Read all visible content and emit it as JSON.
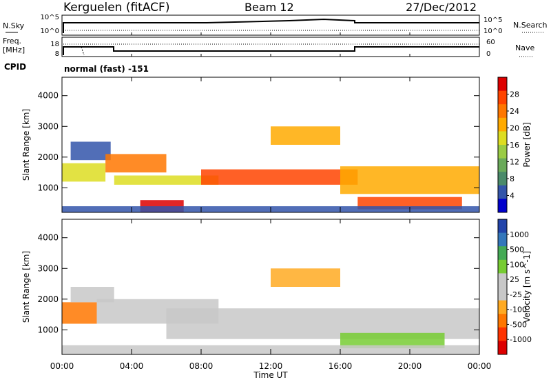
{
  "header": {
    "station": "Kerguelen (fitACF)",
    "beam": "Beam 12",
    "date": "27/Dec/2012"
  },
  "strip_labels": {
    "nsky": "N.Sky",
    "nsearch": "N.Search",
    "freq_line1": "Freq.",
    "freq_line2": "[MHz]",
    "nave": "Nave",
    "cpid": "CPID",
    "cpid_value": "normal (fast) -151"
  },
  "strip_ticks": {
    "noise_left": [
      "10^5",
      "10^0"
    ],
    "noise_right": [
      "10^5",
      "10^0"
    ],
    "freq_left": [
      "18",
      "8"
    ],
    "nave_right": [
      "60",
      "0"
    ]
  },
  "colors": {
    "power": [
      "#0000cc",
      "#3355aa",
      "#4a8a6a",
      "#6aaa5a",
      "#9acc44",
      "#dddd22",
      "#ffaa00",
      "#ff7700",
      "#ff4400",
      "#dd0000"
    ],
    "velocity": [
      "#2244aa",
      "#3377bb",
      "#44aa55",
      "#77cc33",
      "#c8c8c8",
      "#c8c8c8",
      "#ffaa22",
      "#ff7700",
      "#ff3300",
      "#dd0000"
    ]
  },
  "chart_data": [
    {
      "type": "heatmap",
      "name": "Power",
      "ylabel": "Slant Range [km]",
      "ylim": [
        200,
        4600
      ],
      "yticks": [
        "1000",
        "2000",
        "3000",
        "4000"
      ],
      "colorbar_label": "Power [dB]",
      "colorbar_ticks": [
        "4",
        "8",
        "12",
        "16",
        "20",
        "24",
        "28"
      ],
      "bands": [
        {
          "x": [
            0.0,
            2.5
          ],
          "y": [
            1200,
            1800
          ],
          "level": 5
        },
        {
          "x": [
            0.5,
            2.8
          ],
          "y": [
            1900,
            2500
          ],
          "level": 1
        },
        {
          "x": [
            2.5,
            6.0
          ],
          "y": [
            1500,
            2100
          ],
          "level": 7
        },
        {
          "x": [
            3.0,
            9.0
          ],
          "y": [
            1100,
            1400
          ],
          "level": 5
        },
        {
          "x": [
            8.0,
            17.0
          ],
          "y": [
            1100,
            1600
          ],
          "level": 8
        },
        {
          "x": [
            12.0,
            16.0
          ],
          "y": [
            2400,
            3000
          ],
          "level": 6
        },
        {
          "x": [
            16.0,
            24.0
          ],
          "y": [
            800,
            1700
          ],
          "level": 6
        },
        {
          "x": [
            17.0,
            23.0
          ],
          "y": [
            300,
            700
          ],
          "level": 8
        },
        {
          "x": [
            4.5,
            7.0
          ],
          "y": [
            200,
            600
          ],
          "level": 9
        },
        {
          "x": [
            0.0,
            24.0
          ],
          "y": [
            200,
            400
          ],
          "level": 1
        }
      ]
    },
    {
      "type": "heatmap",
      "name": "Velocity",
      "xlabel": "Time UT",
      "xticks": [
        "00:00",
        "04:00",
        "08:00",
        "12:00",
        "16:00",
        "20:00",
        "00:00"
      ],
      "xlim": [
        0,
        24
      ],
      "ylabel": "Slant Range [km]",
      "ylim": [
        200,
        4600
      ],
      "yticks": [
        "1000",
        "2000",
        "3000",
        "4000"
      ],
      "colorbar_label": "Velocity [m s^-1]",
      "colorbar_ticks": [
        "1000",
        "500",
        "100",
        "25",
        "-25",
        "-100",
        "-500",
        "-1000"
      ],
      "bands": [
        {
          "x": [
            0.0,
            2.0
          ],
          "y": [
            1200,
            1900
          ],
          "level": 7
        },
        {
          "x": [
            0.5,
            3.0
          ],
          "y": [
            1900,
            2400
          ],
          "level": 4
        },
        {
          "x": [
            2.0,
            9.0
          ],
          "y": [
            1200,
            2000
          ],
          "level": 4
        },
        {
          "x": [
            6.0,
            24.0
          ],
          "y": [
            700,
            1700
          ],
          "level": 4
        },
        {
          "x": [
            12.0,
            16.0
          ],
          "y": [
            2400,
            3000
          ],
          "level": 6
        },
        {
          "x": [
            16.0,
            22.0
          ],
          "y": [
            400,
            900
          ],
          "level": 3
        },
        {
          "x": [
            0.0,
            24.0
          ],
          "y": [
            200,
            500
          ],
          "level": 4
        }
      ]
    }
  ]
}
